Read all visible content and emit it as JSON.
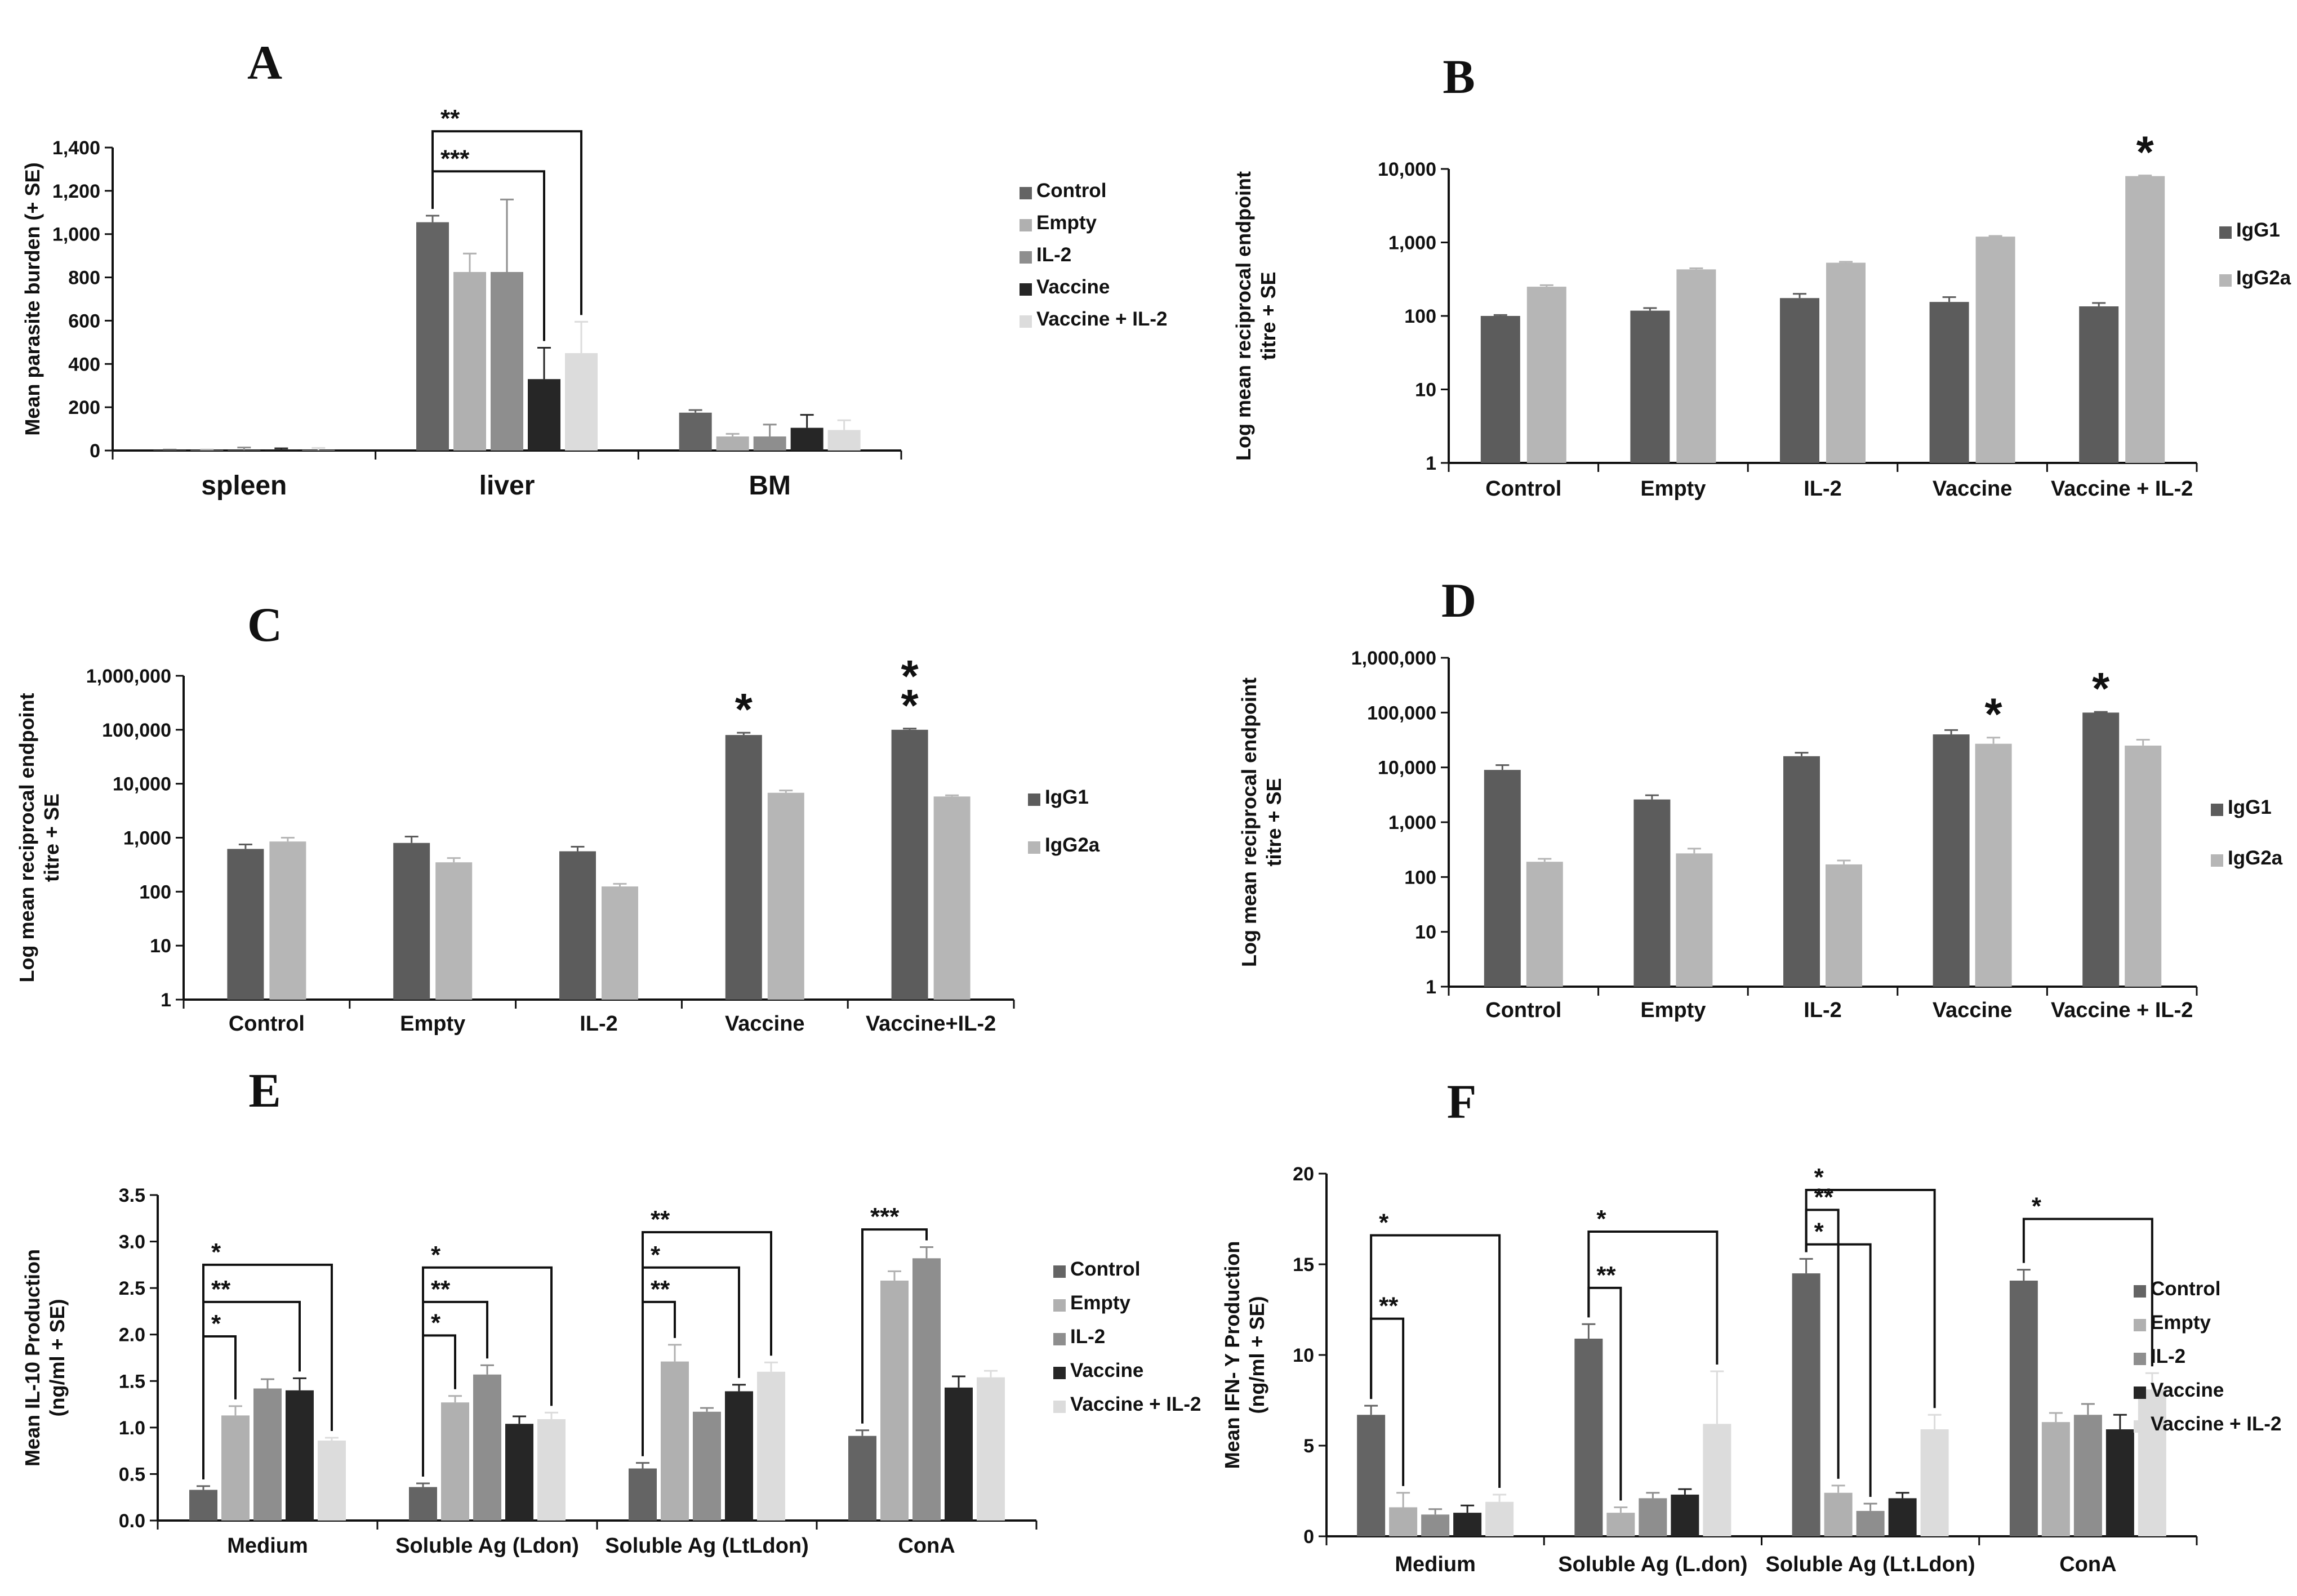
{
  "colors": {
    "Control": "#646464",
    "Empty": "#b0b0b0",
    "IL-2": "#8e8e8e",
    "Vaccine": "#262626",
    "Vaccine + IL-2": "#dcdcdc",
    "IgG1": "#5c5c5c",
    "IgG2a": "#b6b6b6",
    "axis": "#111111"
  },
  "chart_data": [
    {
      "id": "A",
      "panel": "A",
      "type": "bar",
      "scale": "linear",
      "ylabel": "Mean parasite burden (+ SE)",
      "ylim": [
        0,
        1400
      ],
      "yticks": [
        0,
        200,
        400,
        600,
        800,
        1000,
        1200,
        1400
      ],
      "ytick_labels": [
        "0",
        "200",
        "400",
        "600",
        "800",
        "1,000",
        "1,200",
        "1,400"
      ],
      "categories": [
        "spleen",
        "liver",
        "BM"
      ],
      "series": [
        {
          "name": "Control",
          "values": [
            2,
            1055,
            175
          ],
          "errors": [
            2,
            30,
            12
          ]
        },
        {
          "name": "Empty",
          "values": [
            2,
            825,
            65
          ],
          "errors": [
            2,
            85,
            12
          ]
        },
        {
          "name": "IL-2",
          "values": [
            2,
            825,
            65
          ],
          "errors": [
            12,
            335,
            55
          ]
        },
        {
          "name": "Vaccine",
          "values": [
            2,
            330,
            105
          ],
          "errors": [
            8,
            145,
            60
          ]
        },
        {
          "name": "Vaccine + IL-2",
          "values": [
            2,
            450,
            95
          ],
          "errors": [
            10,
            145,
            45
          ]
        }
      ],
      "brackets": [
        {
          "from": [
            1,
            0
          ],
          "to": [
            1,
            4
          ],
          "level": 1475,
          "label": "**"
        },
        {
          "from": [
            1,
            0
          ],
          "to": [
            1,
            3
          ],
          "level": 1290,
          "label": "***"
        }
      ],
      "stars": []
    },
    {
      "id": "B",
      "panel": "B",
      "type": "bar",
      "scale": "log",
      "ylabel": "Log mean reciprocal endpoint titre + SE",
      "ylim": [
        1,
        10000
      ],
      "yticks": [
        1,
        10,
        100,
        1000,
        10000
      ],
      "ytick_labels": [
        "1",
        "10",
        "100",
        "1,000",
        "10,000"
      ],
      "categories": [
        "Control",
        "Empty",
        "IL-2",
        "Vaccine",
        "Vaccine + IL-2"
      ],
      "series": [
        {
          "name": "IgG1",
          "values": [
            100,
            118,
            175,
            155,
            135
          ],
          "errors": [
            3,
            10,
            25,
            25,
            15
          ]
        },
        {
          "name": "IgG2a",
          "values": [
            250,
            430,
            530,
            1200,
            8000
          ],
          "errors": [
            12,
            15,
            15,
            25,
            150
          ]
        }
      ],
      "brackets": [],
      "stars": [
        {
          "category": 4,
          "series": 1,
          "label": "*"
        }
      ]
    },
    {
      "id": "C",
      "panel": "C",
      "type": "bar",
      "scale": "log",
      "ylabel": "Log mean reciprocal endpoint titre + SE",
      "ylim": [
        1,
        1000000
      ],
      "yticks": [
        1,
        10,
        100,
        1000,
        10000,
        100000,
        1000000
      ],
      "ytick_labels": [
        "1",
        "10",
        "100",
        "1,000",
        "10,000",
        "100,000",
        "1,000,000"
      ],
      "categories": [
        "Control",
        "Empty",
        "IL-2",
        "Vaccine",
        "Vaccine+IL-2"
      ],
      "series": [
        {
          "name": "IgG1",
          "values": [
            620,
            800,
            560,
            80000,
            100000
          ],
          "errors": [
            130,
            250,
            120,
            8000,
            5000
          ]
        },
        {
          "name": "IgG2a",
          "values": [
            850,
            350,
            125,
            6800,
            5800
          ],
          "errors": [
            150,
            70,
            15,
            700,
            300
          ]
        }
      ],
      "brackets": [],
      "stars": [
        {
          "category": 3,
          "series": 0,
          "label": "*"
        },
        {
          "category": 4,
          "series": 0,
          "label": "**"
        }
      ]
    },
    {
      "id": "D",
      "panel": "D",
      "type": "bar",
      "scale": "log",
      "ylabel": "Log mean reciprocal endpoint titre + SE",
      "ylim": [
        1,
        1000000
      ],
      "yticks": [
        1,
        10,
        100,
        1000,
        10000,
        100000,
        1000000
      ],
      "ytick_labels": [
        "1",
        "10",
        "100",
        "1,000",
        "10,000",
        "100,000",
        "1,000,000"
      ],
      "categories": [
        "Control",
        "Empty",
        "IL-2",
        "Vaccine",
        "Vaccine + IL-2"
      ],
      "series": [
        {
          "name": "IgG1",
          "values": [
            9000,
            2600,
            16000,
            40000,
            100000
          ],
          "errors": [
            2000,
            500,
            2500,
            8000,
            3000
          ]
        },
        {
          "name": "IgG2a",
          "values": [
            190,
            270,
            170,
            27000,
            25000
          ],
          "errors": [
            25,
            60,
            30,
            8000,
            7000
          ]
        }
      ],
      "brackets": [],
      "stars": [
        {
          "category": 3,
          "series": 1,
          "label": "*"
        },
        {
          "category": 4,
          "series": 0,
          "label": "*"
        }
      ]
    },
    {
      "id": "E",
      "panel": "E",
      "type": "bar",
      "scale": "linear",
      "ylabel": "Mean IL-10 Production (ng/ml + SE)",
      "ylim": [
        0,
        3.5
      ],
      "yticks": [
        0,
        0.5,
        1,
        1.5,
        2,
        2.5,
        3,
        3.5
      ],
      "ytick_labels": [
        "0.0",
        "0.5",
        "1.0",
        "1.5",
        "2.0",
        "2.5",
        "3.0",
        "3.5"
      ],
      "categories": [
        "Medium",
        "Soluble Ag (Ldon)",
        "Soluble Ag (LtLdon)",
        "ConA"
      ],
      "series": [
        {
          "name": "Control",
          "values": [
            0.33,
            0.36,
            0.56,
            0.91
          ],
          "errors": [
            0.04,
            0.04,
            0.06,
            0.06
          ]
        },
        {
          "name": "Empty",
          "values": [
            1.13,
            1.27,
            1.71,
            2.58
          ],
          "errors": [
            0.1,
            0.07,
            0.18,
            0.1
          ]
        },
        {
          "name": "IL-2",
          "values": [
            1.42,
            1.57,
            1.17,
            2.82
          ],
          "errors": [
            0.1,
            0.1,
            0.04,
            0.12
          ]
        },
        {
          "name": "Vaccine",
          "values": [
            1.4,
            1.04,
            1.39,
            1.43
          ],
          "errors": [
            0.13,
            0.08,
            0.07,
            0.12
          ]
        },
        {
          "name": "Vaccine + IL-2",
          "values": [
            0.86,
            1.09,
            1.6,
            1.54
          ],
          "errors": [
            0.03,
            0.07,
            0.1,
            0.07
          ]
        }
      ],
      "brackets": [
        {
          "from": [
            0,
            0
          ],
          "to": [
            0,
            4
          ],
          "level": 2.75,
          "label": "*"
        },
        {
          "from": [
            0,
            0
          ],
          "to": [
            0,
            3
          ],
          "level": 2.35,
          "label": "**"
        },
        {
          "from": [
            0,
            0
          ],
          "to": [
            0,
            1
          ],
          "level": 1.98,
          "label": "*"
        },
        {
          "from": [
            1,
            0
          ],
          "to": [
            1,
            4
          ],
          "level": 2.72,
          "label": "*"
        },
        {
          "from": [
            1,
            0
          ],
          "to": [
            1,
            2
          ],
          "level": 2.35,
          "label": "**"
        },
        {
          "from": [
            1,
            0
          ],
          "to": [
            1,
            1
          ],
          "level": 1.99,
          "label": "*"
        },
        {
          "from": [
            2,
            0
          ],
          "to": [
            2,
            4
          ],
          "level": 3.1,
          "label": "**"
        },
        {
          "from": [
            2,
            0
          ],
          "to": [
            2,
            3
          ],
          "level": 2.72,
          "label": "*"
        },
        {
          "from": [
            2,
            0
          ],
          "to": [
            2,
            1
          ],
          "level": 2.35,
          "label": "**"
        },
        {
          "from": [
            3,
            0
          ],
          "to": [
            3,
            2
          ],
          "level": 3.13,
          "label": "***"
        }
      ],
      "stars": []
    },
    {
      "id": "F",
      "panel": "F",
      "type": "bar",
      "scale": "linear",
      "ylabel": "Mean IFN- Y Production (ng/ml + SE)",
      "ylim": [
        0,
        20
      ],
      "yticks": [
        0,
        5,
        10,
        15,
        20
      ],
      "ytick_labels": [
        "0",
        "5",
        "10",
        "15",
        "20"
      ],
      "categories": [
        "Medium",
        "Soluble Ag (L.don)",
        "Soluble Ag (Lt.Ldon)",
        "ConA"
      ],
      "series": [
        {
          "name": "Control",
          "values": [
            6.7,
            10.9,
            14.5,
            14.1
          ],
          "errors": [
            0.5,
            0.8,
            0.8,
            0.6
          ]
        },
        {
          "name": "Empty",
          "values": [
            1.6,
            1.3,
            2.4,
            6.3
          ],
          "errors": [
            0.8,
            0.3,
            0.4,
            0.5
          ]
        },
        {
          "name": "IL-2",
          "values": [
            1.2,
            2.1,
            1.4,
            6.7
          ],
          "errors": [
            0.3,
            0.3,
            0.4,
            0.6
          ]
        },
        {
          "name": "Vaccine",
          "values": [
            1.3,
            2.3,
            2.1,
            5.9
          ],
          "errors": [
            0.4,
            0.3,
            0.3,
            0.8
          ]
        },
        {
          "name": "Vaccine + IL-2",
          "values": [
            1.9,
            6.2,
            5.9,
            8.1
          ],
          "errors": [
            0.4,
            2.9,
            0.8,
            0.9
          ]
        }
      ],
      "brackets": [
        {
          "from": [
            0,
            0
          ],
          "to": [
            0,
            4
          ],
          "level": 16.6,
          "label": "*"
        },
        {
          "from": [
            0,
            0
          ],
          "to": [
            0,
            1
          ],
          "level": 12.0,
          "label": "**"
        },
        {
          "from": [
            1,
            0
          ],
          "to": [
            1,
            4
          ],
          "level": 16.8,
          "label": "*"
        },
        {
          "from": [
            1,
            0
          ],
          "to": [
            1,
            1
          ],
          "level": 13.7,
          "label": "**"
        },
        {
          "from": [
            2,
            0
          ],
          "to": [
            2,
            4
          ],
          "level": 19.1,
          "label": "*"
        },
        {
          "from": [
            2,
            0
          ],
          "to": [
            2,
            1
          ],
          "level": 18.0,
          "label": "**"
        },
        {
          "from": [
            2,
            0
          ],
          "to": [
            2,
            2
          ],
          "level": 16.1,
          "label": "*"
        },
        {
          "from": [
            3,
            0
          ],
          "to": [
            3,
            4
          ],
          "level": 17.5,
          "label": "*"
        }
      ],
      "stars": []
    }
  ]
}
